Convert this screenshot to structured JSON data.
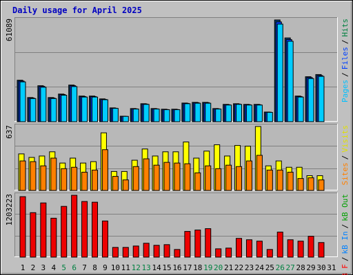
{
  "separator": "/",
  "chart_data": [
    {
      "type": "bar",
      "title": "Daily usage for April 2025",
      "ylim": [
        0,
        61089
      ],
      "grid": true,
      "legend": [
        "Pages",
        "Files",
        "Hits"
      ],
      "legend_colors": [
        "#00c0ff",
        "#0040ff",
        "#008040"
      ],
      "series": [
        {
          "color": "#0a3d6b",
          "values": [
            24900,
            14500,
            21600,
            14500,
            16600,
            22000,
            15400,
            15400,
            13700,
            8300,
            3300,
            7900,
            10800,
            7900,
            7500,
            7500,
            11200,
            11600,
            11600,
            7900,
            10400,
            10800,
            10400,
            10400,
            5800,
            61089,
            50300,
            15400,
            27000,
            28300,
            0
          ]
        },
        {
          "color": "#0040ff",
          "values": [
            24400,
            14200,
            21200,
            14200,
            16300,
            21600,
            15100,
            15100,
            13400,
            8100,
            3200,
            7700,
            10600,
            7700,
            7300,
            7300,
            11000,
            11400,
            11400,
            7700,
            10200,
            10600,
            10200,
            10200,
            5700,
            59900,
            49300,
            15100,
            26500,
            27700,
            0
          ]
        },
        {
          "color": "#00ccff",
          "values": [
            23900,
            13900,
            20700,
            13900,
            15900,
            21100,
            14800,
            14800,
            13200,
            8000,
            3200,
            7600,
            10400,
            7600,
            7200,
            7200,
            10800,
            11100,
            11100,
            7600,
            10000,
            10400,
            10000,
            10000,
            5600,
            58600,
            48300,
            14800,
            25900,
            27200,
            0
          ]
        }
      ]
    },
    {
      "type": "bar",
      "ylim": [
        0,
        637
      ],
      "grid": true,
      "legend": [
        "Sites",
        "Visits"
      ],
      "legend_colors": [
        "#ff8000",
        "#e0e000"
      ],
      "series": [
        {
          "color": "#ffff00",
          "values": [
            364,
            329,
            343,
            385,
            273,
            322,
            273,
            287,
            574,
            189,
            189,
            301,
            413,
            343,
            385,
            385,
            483,
            322,
            392,
            455,
            343,
            448,
            441,
            637,
            245,
            294,
            231,
            231,
            147,
            147,
            0
          ]
        },
        {
          "color": "#ff8000",
          "values": [
            294,
            287,
            245,
            322,
            217,
            231,
            182,
            203,
            406,
            140,
            105,
            238,
            315,
            252,
            280,
            273,
            266,
            175,
            245,
            217,
            252,
            238,
            294,
            350,
            203,
            203,
            182,
            119,
            126,
            105,
            0
          ]
        }
      ]
    },
    {
      "type": "bar",
      "ylim": [
        0,
        1203223
      ],
      "grid": true,
      "legend": [
        "kB F",
        "kB In",
        "kB Out"
      ],
      "legend_colors": [
        "#ff0000",
        "#0080ff",
        "#00a000"
      ],
      "series": [
        {
          "color": "#ee0000",
          "values": [
            1176000,
            865000,
            1054000,
            757000,
            987000,
            1203223,
            1082000,
            1068000,
            703000,
            189000,
            189000,
            216000,
            270000,
            230000,
            243000,
            149000,
            500000,
            527000,
            554000,
            162000,
            176000,
            365000,
            338000,
            311000,
            149000,
            487000,
            338000,
            311000,
            406000,
            284000,
            0
          ]
        }
      ],
      "categories": [
        1,
        2,
        3,
        4,
        5,
        6,
        7,
        8,
        9,
        10,
        11,
        12,
        13,
        14,
        15,
        16,
        17,
        18,
        19,
        20,
        21,
        22,
        23,
        24,
        25,
        26,
        27,
        28,
        29,
        30,
        31
      ],
      "category_colors": [
        "#000",
        "#000",
        "#000",
        "#000",
        "#008040",
        "#008040",
        "#000",
        "#000",
        "#000",
        "#000",
        "#000",
        "#008040",
        "#008040",
        "#000",
        "#000",
        "#000",
        "#000",
        "#000",
        "#008040",
        "#008040",
        "#000",
        "#000",
        "#000",
        "#000",
        "#000",
        "#008040",
        "#008040",
        "#000",
        "#000",
        "#000",
        "#000"
      ]
    }
  ]
}
